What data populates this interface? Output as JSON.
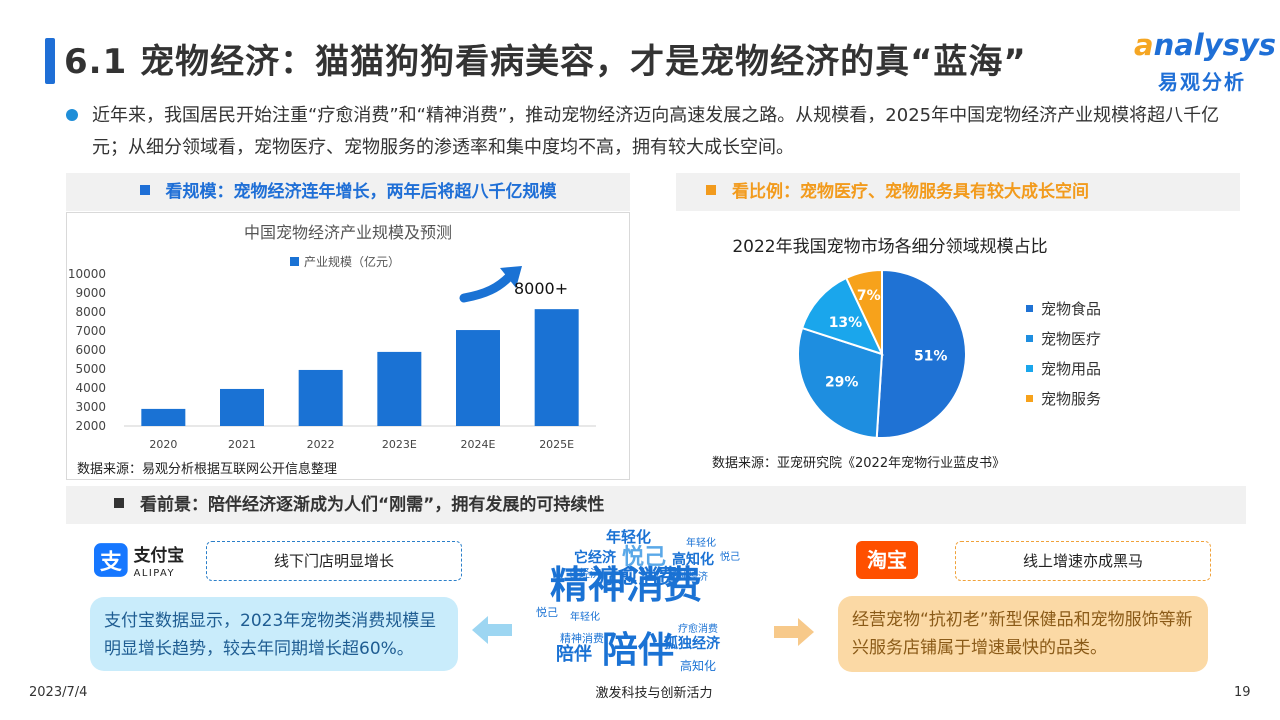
{
  "header": {
    "title": "6.1 宠物经济：猫猫狗狗看病美容，才是宠物经济的真“蓝海”",
    "logo_en_first": "a",
    "logo_en_rest": "nalysys",
    "logo_cn": "易观分析"
  },
  "intro": "近年来，我国居民开始注重“疗愈消费”和“精神消费”，推动宠物经济迈向高速发展之路。从规模看，2025年中国宠物经济产业规模将超八千亿元；从细分领域看，宠物医疗、宠物服务的渗透率和集中度均不高，拥有较大成长空间。",
  "sections": {
    "left": "看规模：宠物经济连年增长，两年后将超八千亿规模",
    "right": "看比例：宠物医疗、宠物服务具有较大成长空间",
    "bottom": "看前景：陪伴经济逐渐成为人们“刚需”，拥有发展的可持续性"
  },
  "colors": {
    "blue": "#1f6fd6",
    "orange": "#f29b1d",
    "bar": "#1a72d4",
    "pie": [
      "#1f72d4",
      "#1e8ee0",
      "#1aa6ec",
      "#f7a21b"
    ]
  },
  "chart_data": [
    {
      "type": "bar",
      "title": "中国宠物经济产业规模及预测",
      "series": [
        {
          "name": "产业规模（亿元）",
          "values": [
            2900,
            3950,
            4950,
            5900,
            7050,
            8150
          ]
        }
      ],
      "categories": [
        "2020",
        "2021",
        "2022",
        "2023E",
        "2024E",
        "2025E"
      ],
      "ylim": [
        2000,
        10000
      ],
      "yticks": [
        "10000",
        "9000",
        "8000",
        "7000",
        "6000",
        "5000",
        "4000",
        "3000",
        "2000"
      ],
      "annotation": "8000+",
      "source": "数据来源：易观分析根据互联网公开信息整理"
    },
    {
      "type": "pie",
      "title": "2022年我国宠物市场各细分领域规模占比",
      "labels": [
        "宠物食品",
        "宠物医疗",
        "宠物用品",
        "宠物服务"
      ],
      "values": [
        51,
        29,
        13,
        7
      ],
      "value_labels": [
        "51%",
        "29%",
        "13%",
        "7%"
      ],
      "legend_position": "right",
      "source": "数据来源：亚宠研究院《2022年宠物行业蓝皮书》"
    }
  ],
  "prospects": {
    "alipay": {
      "logo_icon": "支",
      "logo_cn": "支付宝",
      "logo_en": "ALIPAY",
      "tag": "线下门店明显增长",
      "text": "支付宝数据显示，2023年宠物类消费规模呈明显增长趋势，较去年同期增长超60%。"
    },
    "taobao": {
      "logo": "淘宝",
      "tag": "线上增速亦成黑马",
      "text": "经营宠物“抗初老”新型保健品和宠物服饰等新兴服务店铺属于增速最快的品类。"
    },
    "cloud_caption": "激发科技与创新活力"
  },
  "word_cloud": [
    "精神消费",
    "陪伴",
    "陪伴",
    "疗愈消费",
    "悦己",
    "年轻化",
    "它经济",
    "高知化",
    "孤独经济",
    "疗愈消费",
    "高知化",
    "年轻化",
    "悦己",
    "精神消费",
    "它经济",
    "孤独经济",
    "年轻化",
    "悦己"
  ],
  "footer": {
    "date": "2023/7/4",
    "page": "19"
  }
}
